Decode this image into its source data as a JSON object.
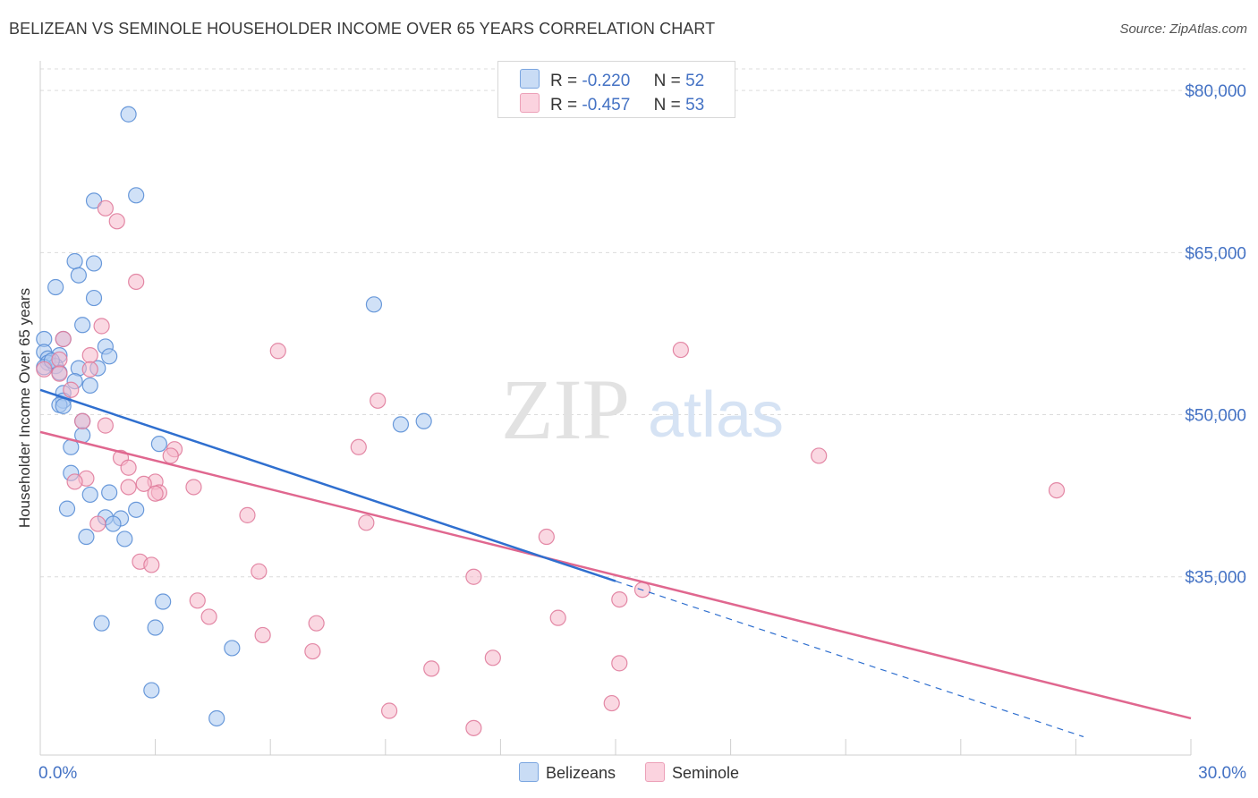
{
  "header": {
    "title": "BELIZEAN VS SEMINOLE HOUSEHOLDER INCOME OVER 65 YEARS CORRELATION CHART",
    "source": "Source: ZipAtlas.com"
  },
  "watermark": {
    "zip": "ZIP",
    "atlas": "atlas"
  },
  "legend": {
    "rows": [
      {
        "r_label": "R =",
        "r_value": "-0.220",
        "n_label": "N =",
        "n_value": "52",
        "color": "#a9c8f0"
      },
      {
        "r_label": "R =",
        "r_value": "-0.457",
        "n_label": "N =",
        "n_value": "53",
        "color": "#f5b8cb"
      }
    ]
  },
  "bottom_legend": {
    "belizeans": "Belizeans",
    "seminole": "Seminole"
  },
  "colors": {
    "blue_fill": "#a9c8f0",
    "blue_stroke": "#5b8fd6",
    "blue_line": "#2f6fcf",
    "pink_fill": "#f5b8cb",
    "pink_stroke": "#e07c9c",
    "pink_line": "#e0678f",
    "tick_label": "#4472c4",
    "grid": "#dcdcdc"
  },
  "chart_data": {
    "type": "scatter",
    "title": "BELIZEAN VS SEMINOLE HOUSEHOLDER INCOME OVER 65 YEARS CORRELATION CHART",
    "xlabel": "",
    "ylabel": "Householder Income Over 65 years",
    "xlim": [
      0,
      30
    ],
    "ylim": [
      19000,
      82000
    ],
    "x_tick_labels": [
      "0.0%",
      "30.0%"
    ],
    "y_ticks": [
      35000,
      50000,
      65000,
      80000
    ],
    "y_tick_labels": [
      "$35,000",
      "$50,000",
      "$65,000",
      "$80,000"
    ],
    "series": [
      {
        "name": "Belizeans",
        "points": [
          [
            2.3,
            77800
          ],
          [
            2.5,
            70300
          ],
          [
            1.4,
            69800
          ],
          [
            0.9,
            64200
          ],
          [
            1.4,
            64000
          ],
          [
            1.0,
            62900
          ],
          [
            0.4,
            61800
          ],
          [
            1.4,
            60800
          ],
          [
            8.7,
            60200
          ],
          [
            1.1,
            58300
          ],
          [
            0.1,
            57000
          ],
          [
            0.6,
            57000
          ],
          [
            1.7,
            56300
          ],
          [
            0.1,
            55800
          ],
          [
            0.5,
            55500
          ],
          [
            1.8,
            55400
          ],
          [
            0.2,
            55200
          ],
          [
            0.2,
            54800
          ],
          [
            0.4,
            54500
          ],
          [
            1.0,
            54300
          ],
          [
            1.5,
            54300
          ],
          [
            0.5,
            53900
          ],
          [
            0.9,
            53100
          ],
          [
            1.3,
            52700
          ],
          [
            0.6,
            52000
          ],
          [
            0.6,
            51300
          ],
          [
            0.5,
            50900
          ],
          [
            0.6,
            50800
          ],
          [
            10.0,
            49400
          ],
          [
            1.1,
            49400
          ],
          [
            9.4,
            49100
          ],
          [
            1.1,
            48100
          ],
          [
            3.1,
            47300
          ],
          [
            0.8,
            47000
          ],
          [
            0.8,
            44600
          ],
          [
            1.3,
            42600
          ],
          [
            1.8,
            42800
          ],
          [
            0.7,
            41300
          ],
          [
            2.5,
            41200
          ],
          [
            1.7,
            40500
          ],
          [
            2.1,
            40400
          ],
          [
            1.9,
            39900
          ],
          [
            1.2,
            38700
          ],
          [
            2.2,
            38500
          ],
          [
            3.2,
            32700
          ],
          [
            1.6,
            30700
          ],
          [
            3.0,
            30300
          ],
          [
            5.0,
            28400
          ],
          [
            2.9,
            24500
          ],
          [
            4.6,
            21900
          ],
          [
            0.1,
            54400
          ],
          [
            0.3,
            55000
          ]
        ]
      },
      {
        "name": "Seminole",
        "points": [
          [
            1.7,
            69100
          ],
          [
            2.0,
            67900
          ],
          [
            2.5,
            62300
          ],
          [
            1.6,
            58200
          ],
          [
            0.6,
            57000
          ],
          [
            6.2,
            55900
          ],
          [
            16.7,
            56000
          ],
          [
            1.3,
            55500
          ],
          [
            0.5,
            55100
          ],
          [
            1.3,
            54200
          ],
          [
            0.5,
            53800
          ],
          [
            0.8,
            52300
          ],
          [
            8.8,
            51300
          ],
          [
            1.7,
            49000
          ],
          [
            1.1,
            49400
          ],
          [
            8.3,
            47000
          ],
          [
            3.5,
            46800
          ],
          [
            20.3,
            46200
          ],
          [
            2.1,
            46000
          ],
          [
            3.4,
            46200
          ],
          [
            2.3,
            45100
          ],
          [
            1.2,
            44100
          ],
          [
            3.0,
            43800
          ],
          [
            2.7,
            43600
          ],
          [
            0.9,
            43800
          ],
          [
            2.3,
            43300
          ],
          [
            4.0,
            43300
          ],
          [
            3.1,
            42800
          ],
          [
            26.5,
            43000
          ],
          [
            3.0,
            42700
          ],
          [
            5.4,
            40700
          ],
          [
            8.5,
            40000
          ],
          [
            1.5,
            39900
          ],
          [
            13.2,
            38700
          ],
          [
            2.6,
            36400
          ],
          [
            2.9,
            36100
          ],
          [
            5.7,
            35500
          ],
          [
            11.3,
            35000
          ],
          [
            15.7,
            33800
          ],
          [
            15.1,
            32900
          ],
          [
            4.1,
            32800
          ],
          [
            4.4,
            31300
          ],
          [
            13.5,
            31200
          ],
          [
            7.2,
            30700
          ],
          [
            5.8,
            29600
          ],
          [
            7.1,
            28100
          ],
          [
            11.8,
            27500
          ],
          [
            15.1,
            27000
          ],
          [
            10.2,
            26500
          ],
          [
            14.9,
            23300
          ],
          [
            9.1,
            22600
          ],
          [
            11.3,
            21000
          ],
          [
            0.1,
            54200
          ]
        ]
      }
    ],
    "trendlines": [
      {
        "series": "Belizeans",
        "solid": [
          [
            0,
            52300
          ],
          [
            15.0,
            34600
          ]
        ],
        "dashed": [
          [
            15.0,
            34600
          ],
          [
            27.2,
            20200
          ]
        ]
      },
      {
        "series": "Seminole",
        "solid": [
          [
            0,
            48400
          ],
          [
            30.0,
            21900
          ]
        ]
      }
    ]
  }
}
